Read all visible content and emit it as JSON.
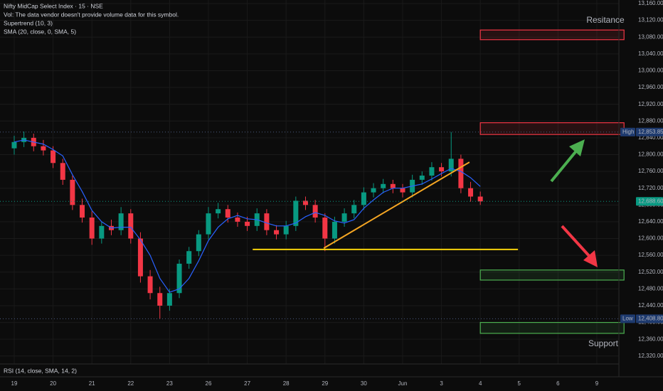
{
  "chart_data": {
    "type": "candlestick",
    "title": "Nifty MidCap Select Index · 15 · NSE",
    "legend_lines": [
      "Vol: The data vendor doesn't provide volume data for this symbol.",
      "Supertrend (10, 3)",
      "SMA (20, close, 0, SMA, 5)"
    ],
    "lower_pane": "RSI (14, close, SMA, 14, 2)",
    "up_color": "#089981",
    "down_color": "#f23645",
    "sma_color": "#2962ff",
    "grid": true,
    "xlim": [
      -0.366,
      15.568
    ],
    "ylim": [
      12301,
      13168.5
    ],
    "xticks": [
      {
        "value": 0,
        "label": "19"
      },
      {
        "value": 1,
        "label": "20"
      },
      {
        "value": 2,
        "label": "21"
      },
      {
        "value": 3,
        "label": "22"
      },
      {
        "value": 4,
        "label": "23"
      },
      {
        "value": 5,
        "label": "26"
      },
      {
        "value": 6,
        "label": "27"
      },
      {
        "value": 7,
        "label": "28"
      },
      {
        "value": 8,
        "label": "29"
      },
      {
        "value": 9,
        "label": "30"
      },
      {
        "value": 10,
        "label": "Jun"
      },
      {
        "value": 11,
        "label": "3"
      },
      {
        "value": 12,
        "label": "4"
      },
      {
        "value": 13,
        "label": "5"
      },
      {
        "value": 14,
        "label": "6"
      },
      {
        "value": 15,
        "label": "9"
      }
    ],
    "yticks": [
      {
        "value": 12320,
        "label": "12,320.00"
      },
      {
        "value": 12360,
        "label": "12,360.00"
      },
      {
        "value": 12400,
        "label": "12,400.00"
      },
      {
        "value": 12440,
        "label": "12,440.00"
      },
      {
        "value": 12480,
        "label": "12,480.00"
      },
      {
        "value": 12520,
        "label": "12,520.00"
      },
      {
        "value": 12560,
        "label": "12,560.00"
      },
      {
        "value": 12600,
        "label": "12,600.00"
      },
      {
        "value": 12640,
        "label": "12,640.00"
      },
      {
        "value": 12680,
        "label": "12,680.00"
      },
      {
        "value": 12720,
        "label": "12,720.00"
      },
      {
        "value": 12760,
        "label": "12,760.00"
      },
      {
        "value": 12800,
        "label": "12,800.00"
      },
      {
        "value": 12840,
        "label": "12,840.00"
      },
      {
        "value": 12880,
        "label": "12,880.00"
      },
      {
        "value": 12920,
        "label": "12,920.00"
      },
      {
        "value": 12960,
        "label": "12,960.00"
      },
      {
        "value": 13000,
        "label": "13,000.00"
      },
      {
        "value": 13040,
        "label": "13,040.00"
      },
      {
        "value": 13080,
        "label": "13,080.00"
      },
      {
        "value": 13120,
        "label": "13,120.00"
      },
      {
        "value": 13160,
        "label": "13,160.00"
      }
    ],
    "x": [
      0,
      0.25,
      0.5,
      0.75,
      1,
      1.25,
      1.5,
      1.75,
      2,
      2.25,
      2.5,
      2.75,
      3,
      3.25,
      3.5,
      3.75,
      4,
      4.25,
      4.5,
      4.75,
      5,
      5.25,
      5.5,
      5.75,
      6,
      6.25,
      6.5,
      6.75,
      7,
      7.25,
      7.5,
      7.75,
      8,
      8.25,
      8.5,
      8.75,
      9,
      9.25,
      9.5,
      9.75,
      10,
      10.25,
      10.5,
      10.75,
      11,
      11.25,
      11.5,
      11.75,
      12
    ],
    "open": [
      12815,
      12830,
      12840,
      12820,
      12810,
      12780,
      12740,
      12680,
      12650,
      12600,
      12630,
      12620,
      12660,
      12600,
      12510,
      12470,
      12440,
      12470,
      12540,
      12570,
      12610,
      12660,
      12670,
      12650,
      12640,
      12630,
      12660,
      12620,
      12610,
      12630,
      12690,
      12680,
      12650,
      12600,
      12640,
      12660,
      12680,
      12710,
      12720,
      12730,
      12720,
      12710,
      12740,
      12750,
      12770,
      12760,
      12790,
      12720,
      12700
    ],
    "high": [
      12845,
      12855,
      12850,
      12835,
      12820,
      12790,
      12750,
      12695,
      12665,
      12640,
      12645,
      12675,
      12670,
      12615,
      12525,
      12485,
      12480,
      12550,
      12580,
      12620,
      12675,
      12685,
      12680,
      12662,
      12652,
      12672,
      12670,
      12632,
      12642,
      12700,
      12700,
      12692,
      12660,
      12652,
      12672,
      12692,
      12722,
      12732,
      12742,
      12740,
      12730,
      12752,
      12760,
      12782,
      12780,
      12853.85,
      12800,
      12735,
      12712
    ],
    "low": [
      12800,
      12818,
      12808,
      12798,
      12768,
      12728,
      12668,
      12638,
      12585,
      12588,
      12608,
      12608,
      12588,
      12495,
      12455,
      12408.8,
      12428,
      12458,
      12528,
      12558,
      12598,
      12648,
      12638,
      12628,
      12618,
      12618,
      12608,
      12598,
      12598,
      12618,
      12668,
      12638,
      12570,
      12588,
      12628,
      12648,
      12668,
      12698,
      12708,
      12708,
      12698,
      12698,
      12728,
      12738,
      12748,
      12748,
      12708,
      12688,
      12680
    ],
    "close": [
      12830,
      12840,
      12820,
      12810,
      12780,
      12740,
      12680,
      12650,
      12600,
      12630,
      12620,
      12660,
      12600,
      12510,
      12470,
      12440,
      12470,
      12540,
      12570,
      12610,
      12660,
      12670,
      12650,
      12640,
      12630,
      12660,
      12620,
      12610,
      12630,
      12690,
      12680,
      12650,
      12600,
      12640,
      12660,
      12680,
      12710,
      12720,
      12730,
      12720,
      12710,
      12740,
      12750,
      12770,
      12760,
      12790,
      12720,
      12700,
      12688.6
    ],
    "sma": [
      12830,
      12835,
      12830,
      12825,
      12812,
      12797,
      12752,
      12712,
      12667,
      12640,
      12625,
      12627,
      12627,
      12597,
      12560,
      12505,
      12472,
      12480,
      12505,
      12547,
      12595,
      12627,
      12647,
      12655,
      12647,
      12645,
      12637,
      12630,
      12630,
      12637,
      12652,
      12662,
      12655,
      12642,
      12637,
      12645,
      12672,
      12692,
      12710,
      12720,
      12720,
      12725,
      12730,
      12742,
      12755,
      12767,
      12760,
      12745,
      12724
    ],
    "price_labels": [
      {
        "tag": "High",
        "value": 12853.85,
        "label": "12,853.85",
        "color": "#1e3a6e"
      },
      {
        "tag": "Low",
        "value": 12408.8,
        "label": "12,408.80",
        "color": "#1e3a6e"
      },
      {
        "value": 12688.6,
        "label": "12,688.60",
        "color": "#089981"
      }
    ],
    "boxes": [
      {
        "top": 13097,
        "bottom": 13074,
        "x_start": 12.0,
        "x_end": 15.7,
        "color": "#f23645"
      },
      {
        "top": 12876,
        "bottom": 12848,
        "x_start": 12.0,
        "x_end": 15.7,
        "color": "#f23645"
      },
      {
        "top": 12525,
        "bottom": 12501,
        "x_start": 12.0,
        "x_end": 15.7,
        "color": "#4caf50"
      },
      {
        "top": 12400,
        "bottom": 12374,
        "x_start": 12.0,
        "x_end": 15.7,
        "color": "#4caf50"
      }
    ],
    "lines": [
      {
        "x": [
          6.14,
          12.97
        ],
        "y": [
          12574,
          12574
        ],
        "color": "#f5d20a"
      },
      {
        "x": [
          7.97,
          11.72
        ],
        "y": [
          12577,
          12782
        ],
        "color": "#f5a623"
      }
    ],
    "annotations": [
      {
        "text": "Resitance",
        "color": "#f23645"
      },
      {
        "text": "Support",
        "color": "#4caf50"
      }
    ]
  }
}
